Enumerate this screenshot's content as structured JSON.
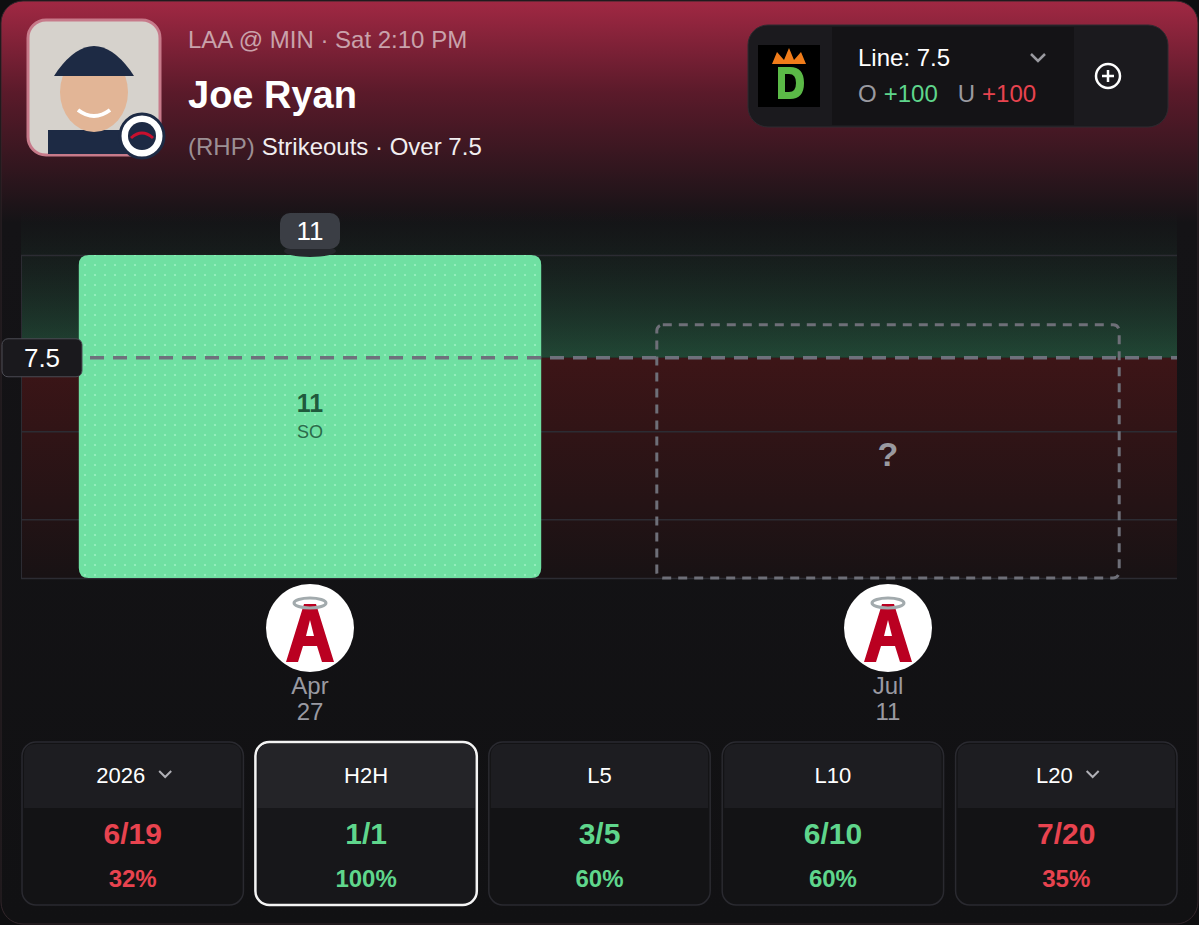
{
  "header": {
    "matchup": "LAA @ MIN · Sat 2:10 PM",
    "player": "Joe Ryan",
    "hand": "(RHP)",
    "market": "Strikeouts · Over 7.5"
  },
  "line_widget": {
    "line": "Line: 7.5",
    "over_label": "O",
    "over_odds": "+100",
    "under_label": "U",
    "under_odds": "+100"
  },
  "chart_data": {
    "type": "bar",
    "categories": [
      "Apr 27",
      "Jul 11"
    ],
    "values": [
      11,
      null
    ],
    "color": "#6fe0a2",
    "ylim": [
      0,
      11
    ],
    "yticks": [
      0,
      2,
      5,
      11
    ],
    "grid": true,
    "tick_labels": false,
    "data_labels": true,
    "threshold": 7.5,
    "unit_label": "SO",
    "placeholder": "?"
  },
  "stats": [
    {
      "label": "2026",
      "dropdown": true,
      "value": "6/19",
      "pct": "32%",
      "color": "#e8434f"
    },
    {
      "label": "H2H",
      "selected": true,
      "value": "1/1",
      "pct": "100%",
      "color": "#5fd68c"
    },
    {
      "label": "L5",
      "value": "3/5",
      "pct": "60%",
      "color": "#5fd68c"
    },
    {
      "label": "L10",
      "value": "6/10",
      "pct": "60%",
      "color": "#5fd68c"
    },
    {
      "label": "L20",
      "dropdown": true,
      "value": "7/20",
      "pct": "35%",
      "color": "#e8434f"
    }
  ]
}
